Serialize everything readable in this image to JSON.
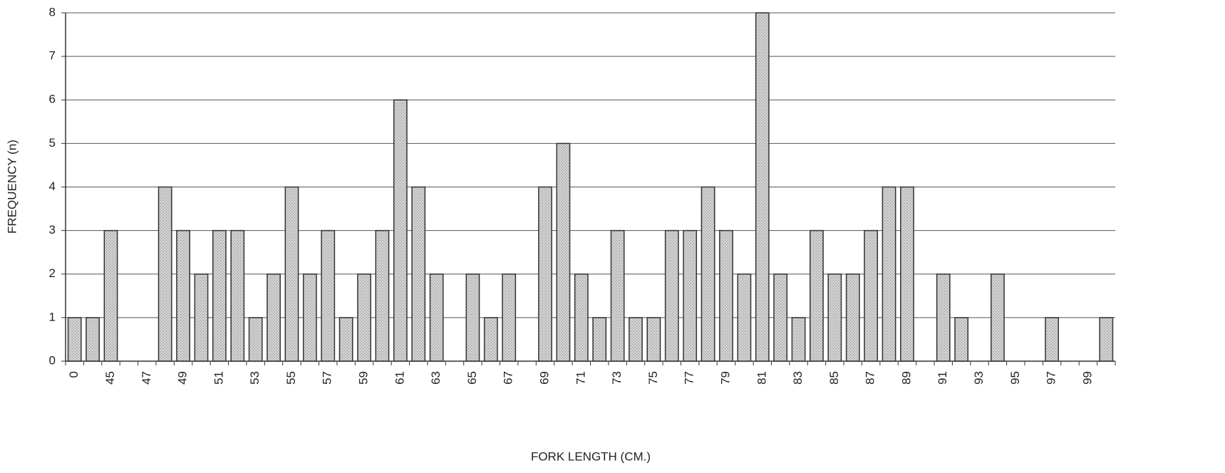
{
  "chart_data": {
    "type": "bar",
    "x_label": "FORK LENGTH (CM.)",
    "y_label": "FREQUENCY (n)",
    "categories": [
      "0",
      null,
      "45",
      null,
      "47",
      null,
      "49",
      null,
      "51",
      null,
      "53",
      null,
      "55",
      null,
      "57",
      null,
      "59",
      null,
      "61",
      null,
      "63",
      null,
      "65",
      null,
      "67",
      null,
      "69",
      null,
      "71",
      null,
      "73",
      null,
      "75",
      null,
      "77",
      null,
      "79",
      null,
      "81",
      null,
      "83",
      null,
      "85",
      null,
      "87",
      null,
      "89",
      null,
      "91",
      null,
      "93",
      null,
      "95",
      null,
      "97",
      null,
      "99",
      null
    ],
    "values": [
      1,
      1,
      3,
      0,
      0,
      4,
      3,
      2,
      3,
      3,
      1,
      2,
      4,
      2,
      3,
      1,
      2,
      3,
      6,
      4,
      2,
      0,
      2,
      1,
      2,
      0,
      4,
      5,
      2,
      1,
      3,
      1,
      1,
      3,
      3,
      4,
      3,
      2,
      8,
      2,
      1,
      3,
      2,
      2,
      3,
      4,
      4,
      0,
      2,
      1,
      0,
      2,
      0,
      0,
      1,
      0,
      0,
      1
    ],
    "color": "#c4c4c4",
    "ylim": [
      0,
      8
    ],
    "yticks": [
      0,
      1,
      2,
      3,
      4,
      5,
      6,
      7,
      8
    ],
    "grid": true
  }
}
